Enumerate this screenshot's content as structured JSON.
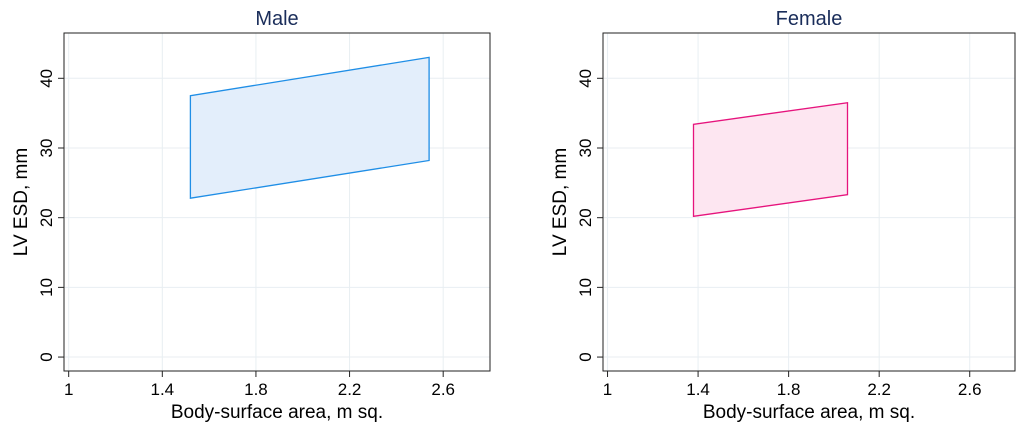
{
  "chart_data": [
    {
      "type": "area",
      "title": "Male",
      "xlabel": "Body-surface area, m sq.",
      "ylabel": "LV ESD, mm",
      "xlim": [
        0.98,
        2.8
      ],
      "ylim": [
        -2,
        46.5
      ],
      "xticks": [
        1,
        1.4,
        1.8,
        2.2,
        2.6
      ],
      "xtick_labels": [
        "1",
        "1.4",
        "1.8",
        "2.2",
        "2.6"
      ],
      "yticks": [
        0,
        10,
        20,
        30,
        40
      ],
      "ytick_labels": [
        "0",
        "10",
        "20",
        "30",
        "40"
      ],
      "grid": true,
      "series": [
        {
          "polygon": [
            [
              1.52,
              22.8
            ],
            [
              2.54,
              28.2
            ],
            [
              2.54,
              43.0
            ],
            [
              1.52,
              37.5
            ]
          ],
          "fill": "#e3eefb",
          "stroke": "#1f8ee6"
        }
      ]
    },
    {
      "type": "area",
      "title": "Female",
      "xlabel": "Body-surface area, m sq.",
      "ylabel": "LV ESD, mm",
      "xlim": [
        0.98,
        2.8
      ],
      "ylim": [
        -2,
        46.5
      ],
      "xticks": [
        1,
        1.4,
        1.8,
        2.2,
        2.6
      ],
      "xtick_labels": [
        "1",
        "1.4",
        "1.8",
        "2.2",
        "2.6"
      ],
      "yticks": [
        0,
        10,
        20,
        30,
        40
      ],
      "ytick_labels": [
        "0",
        "10",
        "20",
        "30",
        "40"
      ],
      "grid": true,
      "series": [
        {
          "polygon": [
            [
              1.38,
              20.2
            ],
            [
              2.06,
              23.3
            ],
            [
              2.06,
              36.5
            ],
            [
              1.38,
              33.4
            ]
          ],
          "fill": "#fde6f1",
          "stroke": "#e6147d"
        }
      ]
    }
  ]
}
